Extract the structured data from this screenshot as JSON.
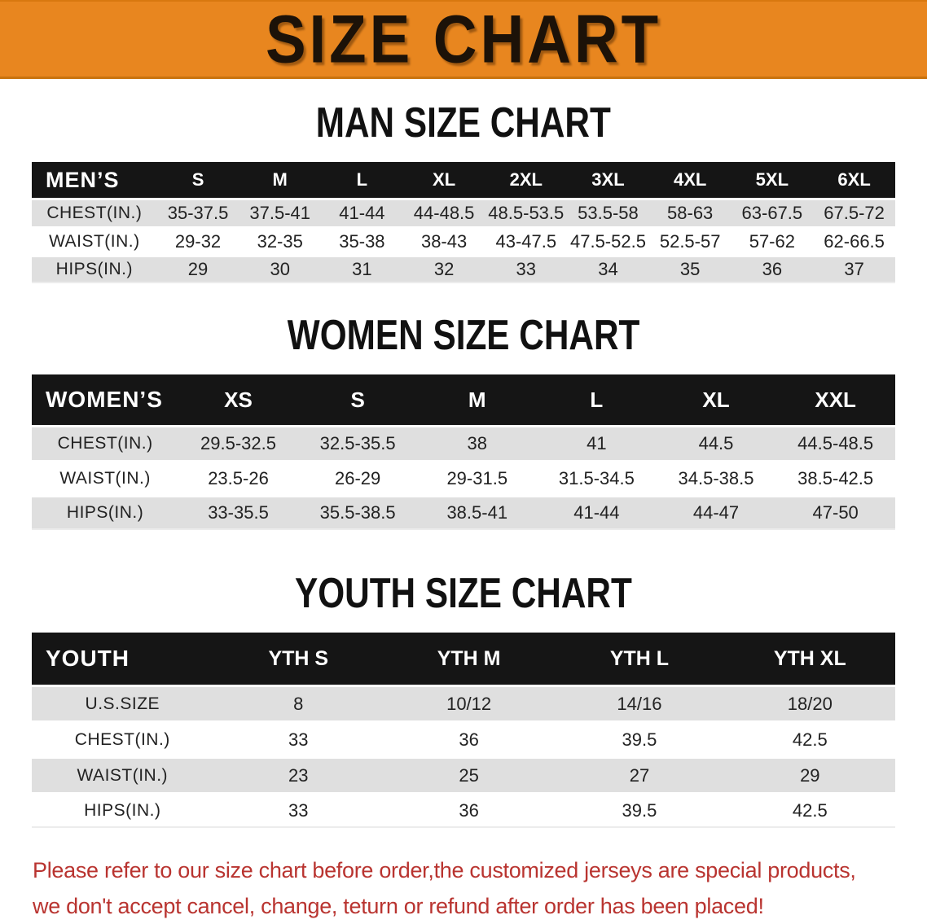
{
  "banner": {
    "title": "SIZE CHART"
  },
  "sections": [
    {
      "id": "men",
      "title": "MAN SIZE CHART",
      "header_label": "MEN’S",
      "columns": [
        "S",
        "M",
        "L",
        "XL",
        "2XL",
        "3XL",
        "4XL",
        "5XL",
        "6XL"
      ],
      "rows": [
        {
          "label": "CHEST(IN.)",
          "values": [
            "35-37.5",
            "37.5-41",
            "41-44",
            "44-48.5",
            "48.5-53.5",
            "53.5-58",
            "58-63",
            "63-67.5",
            "67.5-72"
          ]
        },
        {
          "label": "WAIST(IN.)",
          "values": [
            "29-32",
            "32-35",
            "35-38",
            "38-43",
            "43-47.5",
            "47.5-52.5",
            "52.5-57",
            "57-62",
            "62-66.5"
          ]
        },
        {
          "label": "HIPS(IN.)",
          "values": [
            "29",
            "30",
            "31",
            "32",
            "33",
            "34",
            "35",
            "36",
            "37"
          ]
        }
      ]
    },
    {
      "id": "women",
      "title": "WOMEN SIZE CHART",
      "header_label": "WOMEN’S",
      "columns": [
        "XS",
        "S",
        "M",
        "L",
        "XL",
        "XXL"
      ],
      "rows": [
        {
          "label": "CHEST(IN.)",
          "values": [
            "29.5-32.5",
            "32.5-35.5",
            "38",
            "41",
            "44.5",
            "44.5-48.5"
          ]
        },
        {
          "label": "WAIST(IN.)",
          "values": [
            "23.5-26",
            "26-29",
            "29-31.5",
            "31.5-34.5",
            "34.5-38.5",
            "38.5-42.5"
          ]
        },
        {
          "label": "HIPS(IN.)",
          "values": [
            "33-35.5",
            "35.5-38.5",
            "38.5-41",
            "41-44",
            "44-47",
            "47-50"
          ]
        }
      ]
    },
    {
      "id": "youth",
      "title": "YOUTH SIZE CHART",
      "header_label": "YOUTH",
      "columns": [
        "YTH S",
        "YTH M",
        "YTH L",
        "YTH XL"
      ],
      "rows": [
        {
          "label": "U.S.SIZE",
          "values": [
            "8",
            "10/12",
            "14/16",
            "18/20"
          ]
        },
        {
          "label": "CHEST(IN.)",
          "values": [
            "33",
            "36",
            "39.5",
            "42.5"
          ]
        },
        {
          "label": "WAIST(IN.)",
          "values": [
            "23",
            "25",
            "27",
            "29"
          ]
        },
        {
          "label": "HIPS(IN.)",
          "values": [
            "33",
            "36",
            "39.5",
            "42.5"
          ]
        }
      ]
    }
  ],
  "disclaimer": {
    "line1": "Please refer to our size chart before order,the customized jerseys are special products,",
    "line2": "we don't accept cancel, change, teturn or refund after order has been placed!"
  },
  "colors": {
    "banner_bg": "#E8861F",
    "table_header_bg": "#151515",
    "row_stripe": "#DFDFDF",
    "disclaimer_text": "#B93430"
  }
}
